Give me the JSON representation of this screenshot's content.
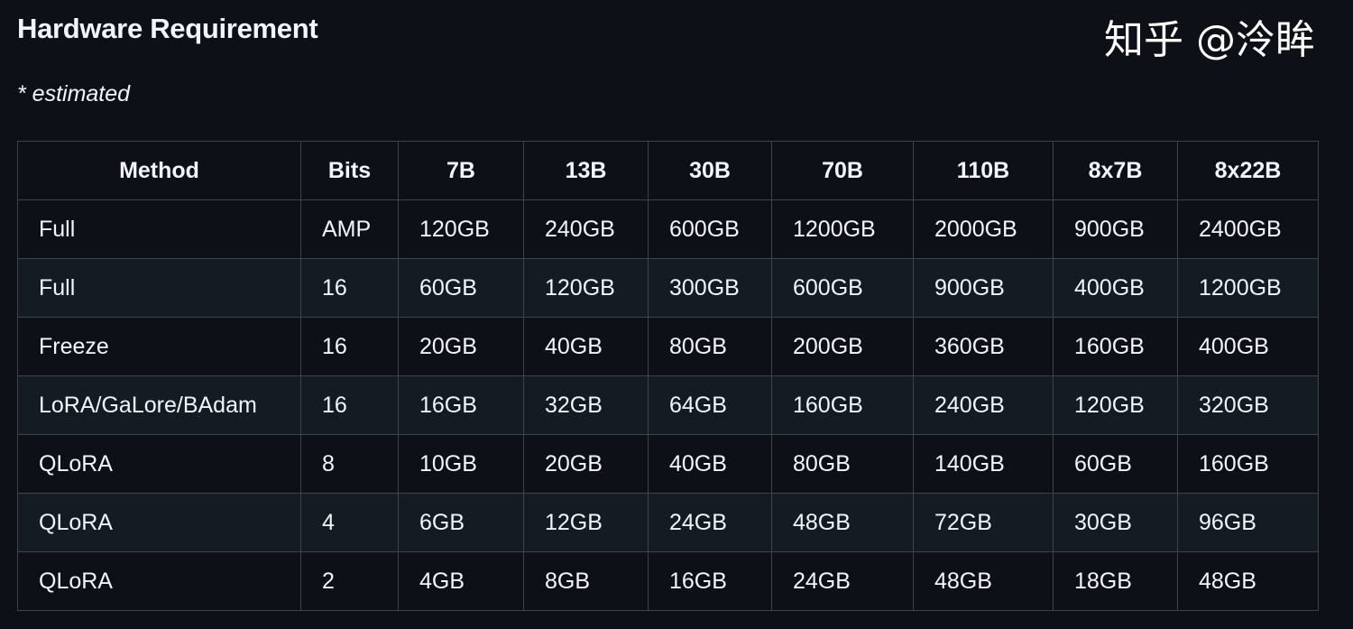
{
  "title": "Hardware Requirement",
  "note": "* estimated",
  "table": {
    "headers": [
      "Method",
      "Bits",
      "7B",
      "13B",
      "30B",
      "70B",
      "110B",
      "8x7B",
      "8x22B"
    ],
    "rows": [
      [
        "Full",
        "AMP",
        "120GB",
        "240GB",
        "600GB",
        "1200GB",
        "2000GB",
        "900GB",
        "2400GB"
      ],
      [
        "Full",
        "16",
        "60GB",
        "120GB",
        "300GB",
        "600GB",
        "900GB",
        "400GB",
        "1200GB"
      ],
      [
        "Freeze",
        "16",
        "20GB",
        "40GB",
        "80GB",
        "200GB",
        "360GB",
        "160GB",
        "400GB"
      ],
      [
        "LoRA/GaLore/BAdam",
        "16",
        "16GB",
        "32GB",
        "64GB",
        "160GB",
        "240GB",
        "120GB",
        "320GB"
      ],
      [
        "QLoRA",
        "8",
        "10GB",
        "20GB",
        "40GB",
        "80GB",
        "140GB",
        "60GB",
        "160GB"
      ],
      [
        "QLoRA",
        "4",
        "6GB",
        "12GB",
        "24GB",
        "48GB",
        "72GB",
        "30GB",
        "96GB"
      ],
      [
        "QLoRA",
        "2",
        "4GB",
        "8GB",
        "16GB",
        "24GB",
        "48GB",
        "18GB",
        "48GB"
      ]
    ]
  },
  "watermark": "知乎 @泠眸"
}
